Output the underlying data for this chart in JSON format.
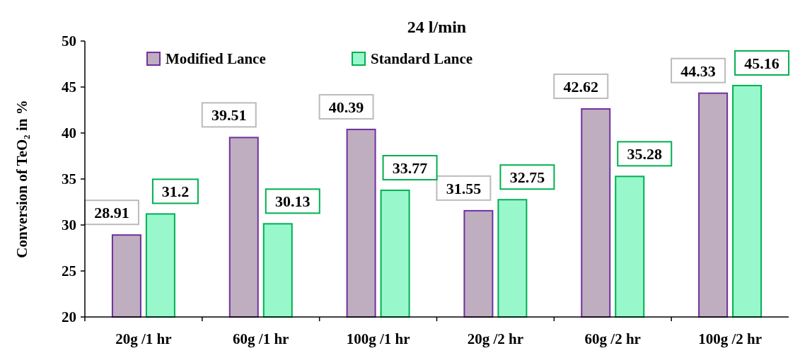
{
  "chart_data": {
    "type": "bar",
    "title": "24 l/min",
    "ylabel": "Conversion of TeO₂ in %",
    "categories": [
      "20g /1 hr",
      "60g /1 hr",
      "100g /1 hr",
      "20g /2 hr",
      "60g /2 hr",
      "100g /2 hr"
    ],
    "series": [
      {
        "name": "Modified Lance",
        "color": "#bfaebf",
        "values": [
          28.91,
          39.51,
          40.39,
          31.55,
          42.62,
          44.33
        ]
      },
      {
        "name": "Standard Lance",
        "color": "#99f7cc",
        "values": [
          31.2,
          30.13,
          33.77,
          32.75,
          35.28,
          45.16
        ]
      }
    ],
    "ylim": [
      20,
      50
    ],
    "yticks": [
      20,
      25,
      30,
      35,
      40,
      45,
      50
    ],
    "grid": false,
    "legend": "top left",
    "data_labels": true
  }
}
